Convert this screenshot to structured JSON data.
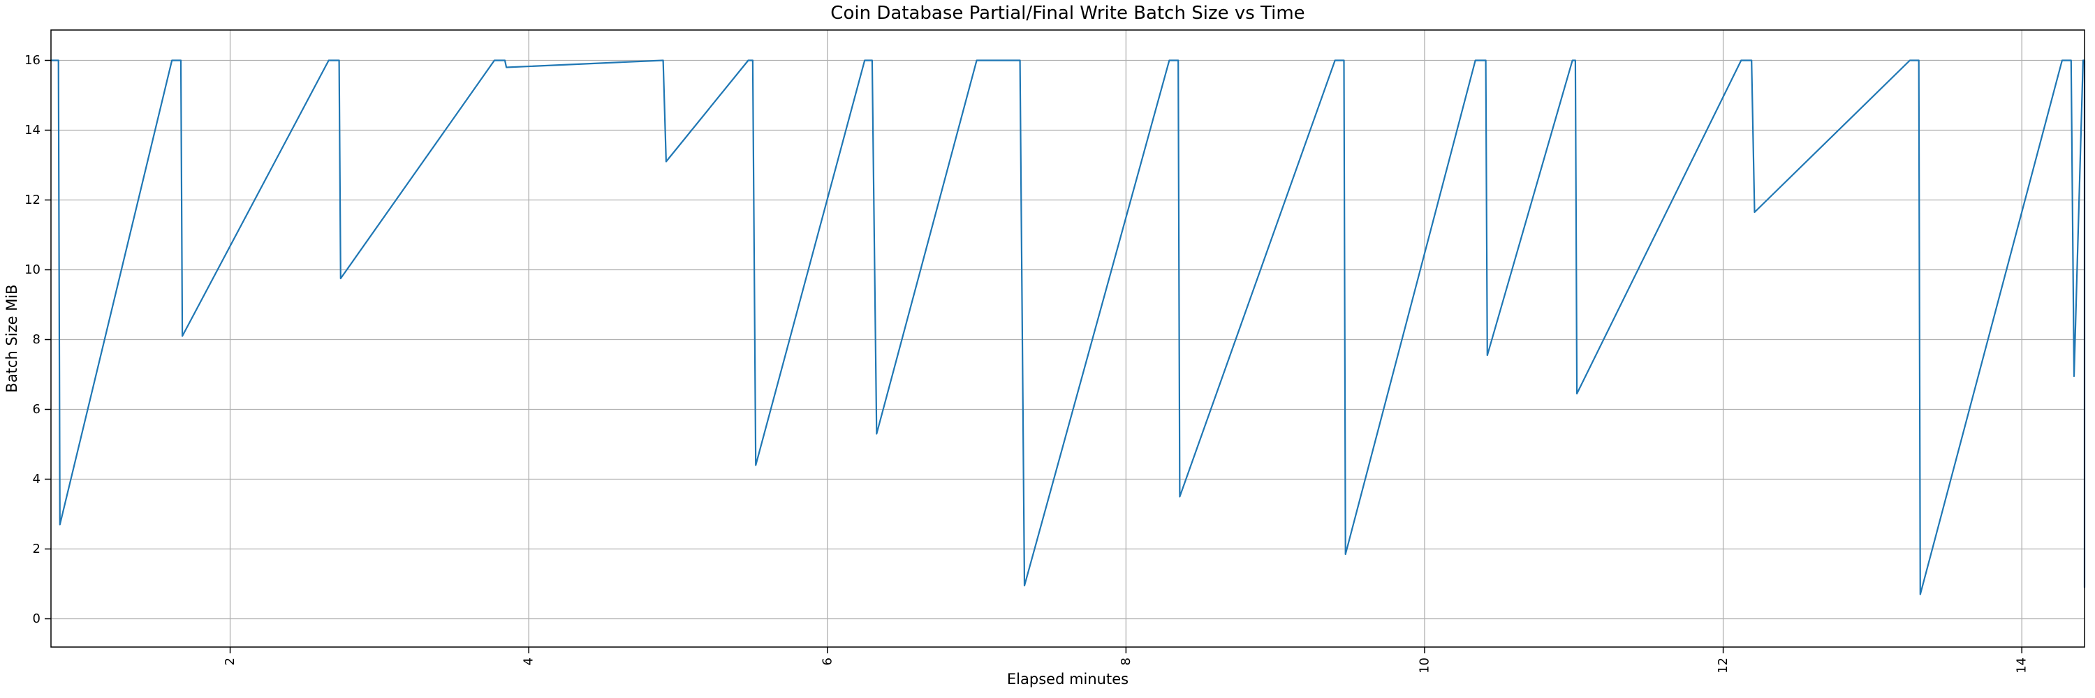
{
  "chart_data": {
    "type": "line",
    "title": "Coin Database Partial/Final Write Batch Size vs Time",
    "xlabel": "Elapsed minutes",
    "ylabel": "Batch Size MiB",
    "xlim": [
      0.8,
      14.42
    ],
    "ylim": [
      -0.81,
      16.87
    ],
    "x_ticks": [
      2,
      4,
      6,
      8,
      10,
      12,
      14
    ],
    "y_ticks": [
      0,
      2,
      4,
      6,
      8,
      10,
      12,
      14,
      16
    ],
    "grid": true,
    "legend": "none",
    "colors": {
      "line": "#1f77b4",
      "grid": "#b0b0b0",
      "spine": "#000000",
      "background": "#ffffff"
    },
    "series": [
      {
        "name": "batch-size",
        "x": [
          0.8,
          0.85,
          0.86,
          1.61,
          1.67,
          1.68,
          2.66,
          2.73,
          2.74,
          3.77,
          3.84,
          3.85,
          4.9,
          4.92,
          5.47,
          5.5,
          5.52,
          6.25,
          6.3,
          6.33,
          7.0,
          7.29,
          7.32,
          8.29,
          8.35,
          8.36,
          9.4,
          9.46,
          9.47,
          10.34,
          10.41,
          10.42,
          10.99,
          11.01,
          11.02,
          12.12,
          12.19,
          12.21,
          13.25,
          13.31,
          13.32,
          14.27,
          14.33,
          14.35,
          14.41,
          14.42,
          14.42
        ],
        "y": [
          16,
          16,
          2.7,
          16,
          16,
          8.1,
          16,
          16,
          9.75,
          16,
          16,
          15.8,
          16,
          13.1,
          16,
          16,
          4.4,
          16,
          16,
          5.3,
          16,
          16,
          0.95,
          16,
          16,
          3.5,
          16,
          16,
          1.85,
          16,
          16,
          7.55,
          16,
          16,
          6.45,
          16,
          16,
          11.65,
          16,
          16,
          0.7,
          16,
          16,
          6.95,
          16,
          16,
          0.9
        ]
      }
    ]
  }
}
